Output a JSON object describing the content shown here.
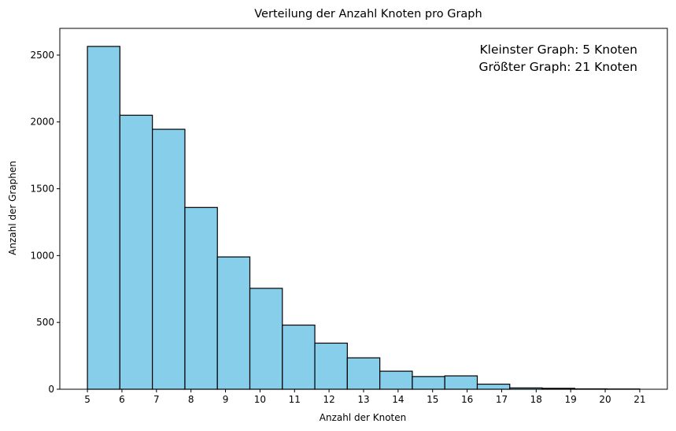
{
  "chart_data": {
    "type": "bar",
    "title": "Verteilung der Anzahl Knoten pro Graph",
    "xlabel": "Anzahl der Knoten",
    "ylabel": "Anzahl der Graphen",
    "bins": [
      {
        "start": 5.0,
        "end": 5.941,
        "value": 2565
      },
      {
        "start": 5.941,
        "end": 6.882,
        "value": 2050
      },
      {
        "start": 6.882,
        "end": 7.824,
        "value": 1945
      },
      {
        "start": 7.824,
        "end": 8.765,
        "value": 1360
      },
      {
        "start": 8.765,
        "end": 9.706,
        "value": 990
      },
      {
        "start": 9.706,
        "end": 10.647,
        "value": 755
      },
      {
        "start": 10.647,
        "end": 11.588,
        "value": 480
      },
      {
        "start": 11.588,
        "end": 12.529,
        "value": 345
      },
      {
        "start": 12.529,
        "end": 13.471,
        "value": 235
      },
      {
        "start": 13.471,
        "end": 14.412,
        "value": 135
      },
      {
        "start": 14.412,
        "end": 15.353,
        "value": 95
      },
      {
        "start": 15.353,
        "end": 16.294,
        "value": 100
      },
      {
        "start": 16.294,
        "end": 17.235,
        "value": 38
      },
      {
        "start": 17.235,
        "end": 18.176,
        "value": 10
      },
      {
        "start": 18.176,
        "end": 19.118,
        "value": 7
      },
      {
        "start": 19.118,
        "end": 20.059,
        "value": 3
      },
      {
        "start": 20.059,
        "end": 21.0,
        "value": 2
      }
    ],
    "xlim": [
      4.2,
      21.8
    ],
    "ylim": [
      0,
      2700
    ],
    "xticks": [
      "5",
      "6",
      "7",
      "8",
      "9",
      "10",
      "11",
      "12",
      "13",
      "14",
      "15",
      "16",
      "17",
      "18",
      "19",
      "20",
      "21"
    ],
    "yticks": [
      "0",
      "500",
      "1000",
      "1500",
      "2000",
      "2500"
    ],
    "grid": false,
    "colors": {
      "bar_fill": "#87ceeb",
      "bar_edge": "#000000"
    },
    "annotation": [
      "Kleinster Graph: 5 Knoten",
      "Größter Graph: 21 Knoten"
    ]
  }
}
